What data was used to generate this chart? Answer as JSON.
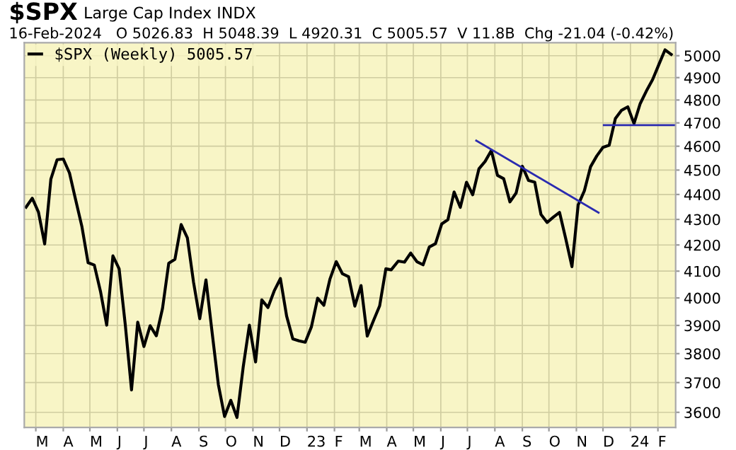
{
  "chart_data": {
    "type": "line",
    "title": "$SPX",
    "subtitle": "Large Cap Index INDX",
    "annotations": [
      "16-Feb-2024   O 5026.83  H 5048.39  L 4920.31  C 5005.57  V 11.8B  Chg -21.04 (-0.42%)"
    ],
    "log": true,
    "grid": true,
    "legend": "top left",
    "marker": "none",
    "line_style": "solid",
    "xlim": [
      "2022-02-16",
      "2024-02-21"
    ],
    "ylim": [
      3550,
      5060
    ],
    "yticks": [
      3600,
      3700,
      3800,
      3900,
      4000,
      4100,
      4200,
      4300,
      4400,
      4500,
      4600,
      4700,
      4800,
      4900,
      5000
    ],
    "xticks": [
      {
        "value": "2022-03-01",
        "label": "M"
      },
      {
        "value": "2022-04-01",
        "label": "A"
      },
      {
        "value": "2022-05-01",
        "label": "M"
      },
      {
        "value": "2022-06-01",
        "label": "J"
      },
      {
        "value": "2022-07-01",
        "label": "J"
      },
      {
        "value": "2022-08-01",
        "label": "A"
      },
      {
        "value": "2022-09-01",
        "label": "S"
      },
      {
        "value": "2022-10-01",
        "label": "O"
      },
      {
        "value": "2022-11-01",
        "label": "N"
      },
      {
        "value": "2022-12-01",
        "label": "D"
      },
      {
        "value": "2023-01-01",
        "label": "23"
      },
      {
        "value": "2023-02-01",
        "label": "F"
      },
      {
        "value": "2023-03-01",
        "label": "M"
      },
      {
        "value": "2023-04-01",
        "label": "A"
      },
      {
        "value": "2023-05-01",
        "label": "M"
      },
      {
        "value": "2023-06-01",
        "label": "J"
      },
      {
        "value": "2023-07-01",
        "label": "J"
      },
      {
        "value": "2023-08-01",
        "label": "A"
      },
      {
        "value": "2023-09-01",
        "label": "S"
      },
      {
        "value": "2023-10-01",
        "label": "O"
      },
      {
        "value": "2023-11-01",
        "label": "N"
      },
      {
        "value": "2023-12-01",
        "label": "D"
      },
      {
        "value": "2024-01-01",
        "label": "24"
      },
      {
        "value": "2024-02-01",
        "label": "F"
      }
    ],
    "series": [
      {
        "name": "$SPX (Weekly) 5005.57",
        "color": "#000000",
        "x": [
          "2022-02-18",
          "2022-02-25",
          "2022-03-04",
          "2022-03-11",
          "2022-03-18",
          "2022-03-25",
          "2022-04-01",
          "2022-04-08",
          "2022-04-14",
          "2022-04-22",
          "2022-04-29",
          "2022-05-06",
          "2022-05-13",
          "2022-05-20",
          "2022-05-27",
          "2022-06-03",
          "2022-06-10",
          "2022-06-17",
          "2022-06-24",
          "2022-07-01",
          "2022-07-08",
          "2022-07-15",
          "2022-07-22",
          "2022-07-29",
          "2022-08-05",
          "2022-08-12",
          "2022-08-19",
          "2022-08-26",
          "2022-09-02",
          "2022-09-09",
          "2022-09-16",
          "2022-09-23",
          "2022-09-30",
          "2022-10-07",
          "2022-10-14",
          "2022-10-21",
          "2022-10-28",
          "2022-11-04",
          "2022-11-11",
          "2022-11-18",
          "2022-11-25",
          "2022-12-02",
          "2022-12-09",
          "2022-12-16",
          "2022-12-23",
          "2022-12-30",
          "2023-01-06",
          "2023-01-13",
          "2023-01-20",
          "2023-01-27",
          "2023-02-03",
          "2023-02-10",
          "2023-02-17",
          "2023-02-24",
          "2023-03-03",
          "2023-03-10",
          "2023-03-17",
          "2023-03-24",
          "2023-03-31",
          "2023-04-06",
          "2023-04-14",
          "2023-04-21",
          "2023-04-28",
          "2023-05-05",
          "2023-05-12",
          "2023-05-19",
          "2023-05-26",
          "2023-06-02",
          "2023-06-09",
          "2023-06-16",
          "2023-06-23",
          "2023-06-30",
          "2023-07-07",
          "2023-07-14",
          "2023-07-21",
          "2023-07-28",
          "2023-08-04",
          "2023-08-11",
          "2023-08-18",
          "2023-08-25",
          "2023-09-01",
          "2023-09-08",
          "2023-09-15",
          "2023-09-22",
          "2023-09-29",
          "2023-10-06",
          "2023-10-13",
          "2023-10-20",
          "2023-10-27",
          "2023-11-03",
          "2023-11-10",
          "2023-11-17",
          "2023-11-24",
          "2023-12-01",
          "2023-12-08",
          "2023-12-15",
          "2023-12-22",
          "2023-12-29",
          "2024-01-05",
          "2024-01-12",
          "2024-01-19",
          "2024-01-26",
          "2024-02-02",
          "2024-02-09",
          "2024-02-16"
        ],
        "values": [
          4349,
          4385,
          4329,
          4204,
          4463,
          4543,
          4546,
          4488,
          4393,
          4272,
          4132,
          4123,
          4024,
          3901,
          4158,
          4109,
          3901,
          3675,
          3912,
          3825,
          3899,
          3863,
          3962,
          4130,
          4145,
          4280,
          4228,
          4058,
          3924,
          4067,
          3873,
          3693,
          3586,
          3640,
          3583,
          3753,
          3901,
          3771,
          3993,
          3965,
          4026,
          4072,
          3934,
          3852,
          3845,
          3840,
          3895,
          3999,
          3973,
          4071,
          4136,
          4090,
          4079,
          3970,
          4046,
          3862,
          3917,
          3971,
          4109,
          4105,
          4138,
          4134,
          4169,
          4136,
          4124,
          4192,
          4205,
          4282,
          4299,
          4410,
          4348,
          4450,
          4399,
          4505,
          4536,
          4582,
          4478,
          4464,
          4370,
          4406,
          4516,
          4457,
          4450,
          4320,
          4288,
          4309,
          4328,
          4224,
          4117,
          4358,
          4415,
          4514,
          4559,
          4595,
          4604,
          4719,
          4755,
          4770,
          4697,
          4784,
          4840,
          4891,
          4959,
          5027,
          5006
        ]
      },
      {
        "type": "line",
        "color": "#2b2bb0",
        "x": [
          "2023-07-11",
          "2023-11-26"
        ],
        "values": [
          4624,
          4327
        ]
      },
      {
        "type": "line",
        "color": "#2b2bb0",
        "x": [
          "2023-12-02",
          "2024-02-21"
        ],
        "values": [
          4690,
          4690
        ]
      }
    ]
  }
}
